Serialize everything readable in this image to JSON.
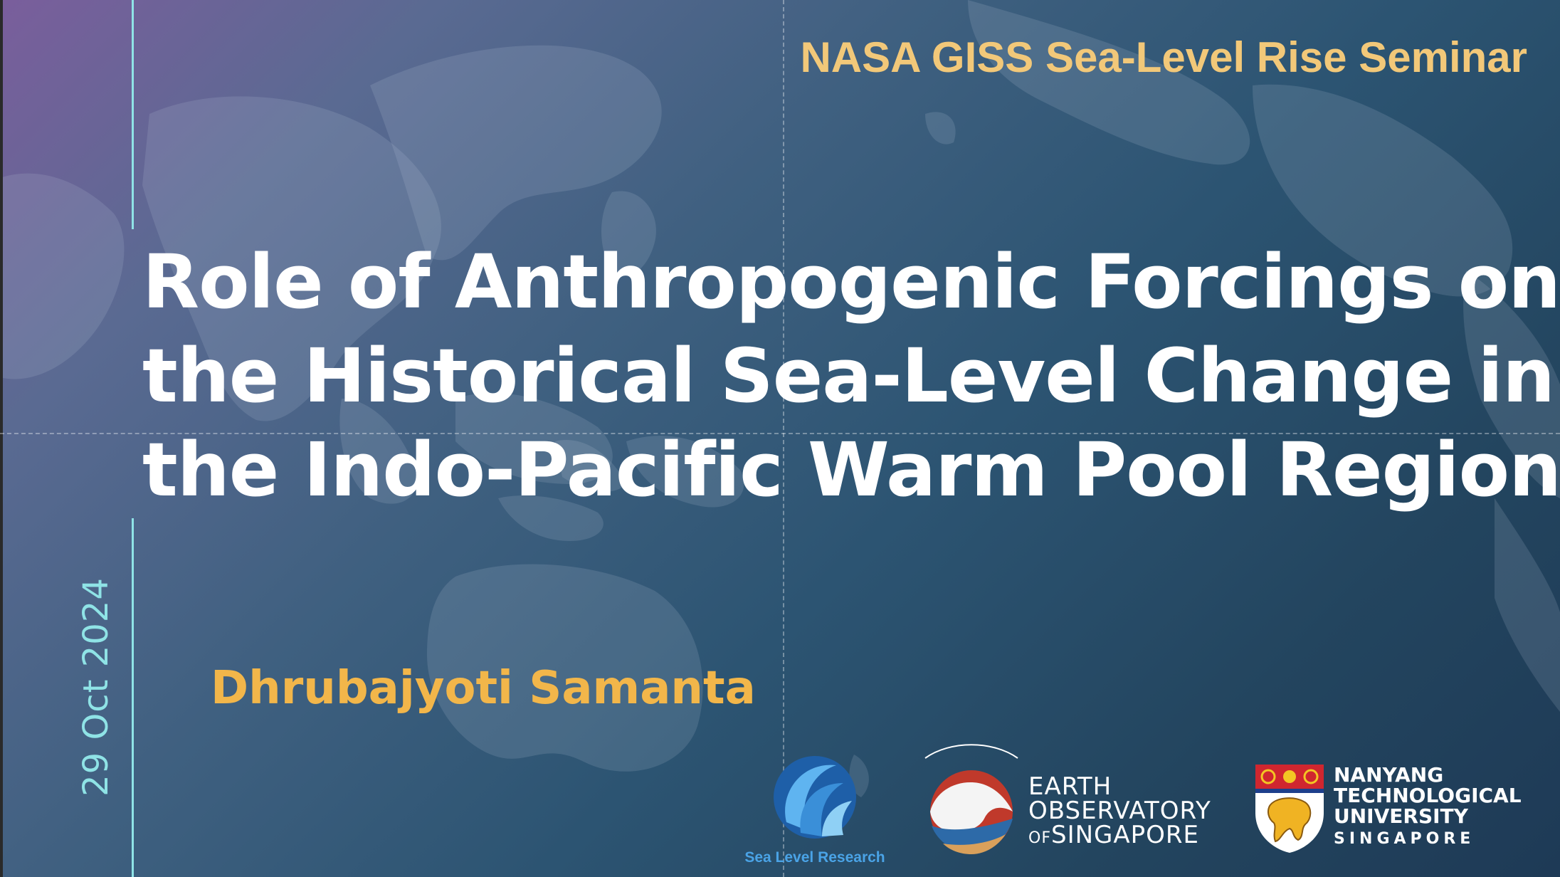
{
  "seminar": "NASA GISS Sea-Level Rise Seminar",
  "title_lines": [
    "Role of Anthropogenic Forcings on",
    "the Historical Sea-Level Change in",
    "the Indo-Pacific Warm Pool Region"
  ],
  "author": "Dhrubajyoti Samanta",
  "date": "29 Oct 2024",
  "logos": {
    "sea_level_research": "Sea Level Research",
    "eos": {
      "line1": "EARTH",
      "line2": "OBSERVATORY",
      "line3_prefix": "OF",
      "line3": "SINGAPORE"
    },
    "ntu": {
      "line1": "NANYANG",
      "line2": "TECHNOLOGICAL",
      "line3": "UNIVERSITY",
      "line4": "SINGAPORE"
    }
  },
  "colors": {
    "accent_gold": "#f2b64a",
    "seminar_gold": "#f2c879",
    "date_cyan": "#8fe3e6",
    "title_white": "#ffffff"
  }
}
